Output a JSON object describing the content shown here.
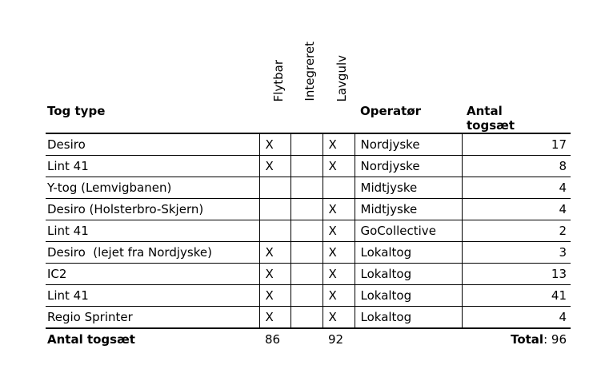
{
  "table": {
    "rotated_headers": {
      "flytbar": "Flytbar",
      "integreret": "Integreret",
      "lavgulv": "Lavgulv"
    },
    "headers": {
      "tog_type": "Tog type",
      "operator": "Operatør",
      "antal_line1": "Antal",
      "antal_line2": "togsæt"
    },
    "rows": [
      {
        "tog_type": "Desiro",
        "flytbar": "X",
        "integreret": "",
        "lavgulv": "X",
        "operator": "Nordjyske",
        "antal": "17"
      },
      {
        "tog_type": "Lint 41",
        "flytbar": "X",
        "integreret": "",
        "lavgulv": "X",
        "operator": "Nordjyske",
        "antal": "8"
      },
      {
        "tog_type": "Y-tog (Lemvigbanen)",
        "flytbar": "",
        "integreret": "",
        "lavgulv": "",
        "operator": "Midtjyske",
        "antal": "4"
      },
      {
        "tog_type": "Desiro (Holsterbro-Skjern)",
        "flytbar": "",
        "integreret": "",
        "lavgulv": "X",
        "operator": "Midtjyske",
        "antal": "4"
      },
      {
        "tog_type": "Lint 41",
        "flytbar": "",
        "integreret": "",
        "lavgulv": "X",
        "operator": "GoCollective",
        "antal": "2"
      },
      {
        "tog_type": "Desiro  (lejet fra Nordjyske)",
        "flytbar": "X",
        "integreret": "",
        "lavgulv": "X",
        "operator": "Lokaltog",
        "antal": "3"
      },
      {
        "tog_type": "IC2",
        "flytbar": "X",
        "integreret": "",
        "lavgulv": "X",
        "operator": "Lokaltog",
        "antal": "13"
      },
      {
        "tog_type": "Lint 41",
        "flytbar": "X",
        "integreret": "",
        "lavgulv": "X",
        "operator": "Lokaltog",
        "antal": "41"
      },
      {
        "tog_type": "Regio Sprinter",
        "flytbar": "X",
        "integreret": "",
        "lavgulv": "X",
        "operator": "Lokaltog",
        "antal": "4"
      }
    ],
    "footer": {
      "label": "Antal togsæt",
      "flytbar_total": "86",
      "lavgulv_total": "92",
      "total_label": "Total",
      "total_rest": ": 96"
    }
  },
  "colors": {
    "text": "#000000",
    "background": "#ffffff",
    "grid_line": "#000000"
  }
}
